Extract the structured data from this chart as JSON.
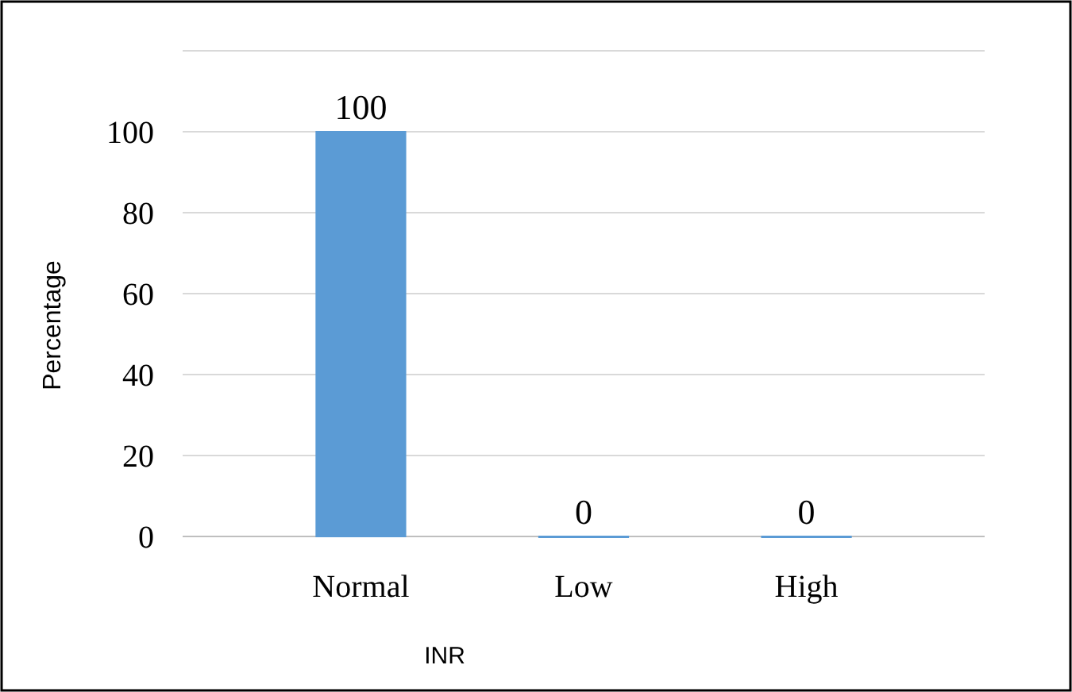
{
  "chart_data": {
    "type": "bar",
    "xlabel": "INR",
    "ylabel": "Percentage",
    "categories": [
      "Normal",
      "Low",
      "High"
    ],
    "values": [
      100,
      0,
      0
    ],
    "color": "#5b9bd5",
    "ylim": [
      0,
      120
    ],
    "yticks": [
      0,
      20,
      40,
      60,
      80,
      100,
      {
        "value": 120,
        "label": null
      }
    ],
    "grid": "y",
    "data_labels": true
  }
}
